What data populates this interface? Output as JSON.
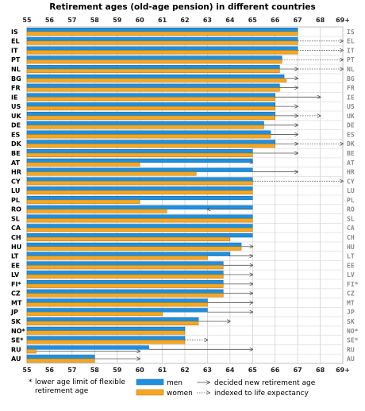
{
  "chart_data": {
    "type": "bar",
    "title": "Retirement ages (old-age pension) in different countries",
    "x_ticks": [
      "55",
      "56",
      "57",
      "58",
      "59",
      "60",
      "61",
      "62",
      "63",
      "64",
      "65",
      "66",
      "67",
      "68",
      "69+"
    ],
    "xlim": [
      55,
      69
    ],
    "grid": true,
    "colors": {
      "men": "#1e90e0",
      "women": "#f5a623",
      "arrow": "#555555"
    },
    "series_names": {
      "men": "men",
      "women": "women"
    },
    "countries": [
      {
        "code": "IS",
        "men": 67,
        "women": 67
      },
      {
        "code": "EL",
        "men": 67,
        "women": 67,
        "arrow": 69,
        "arrow_style": "dotted"
      },
      {
        "code": "IT",
        "men": 67,
        "women": 67,
        "arrow": 69,
        "arrow_style": "dotted"
      },
      {
        "code": "PT",
        "men": 66.3,
        "women": 66.3,
        "arrow": 69,
        "arrow_style": "dotted"
      },
      {
        "code": "NL",
        "men": 66.2,
        "women": 66.2,
        "arrow": 67,
        "arrow_style": "solid",
        "arrow2": 69,
        "arrow2_style": "dotted"
      },
      {
        "code": "BG",
        "men": 66.4,
        "women": 66.5,
        "arrow": 67,
        "arrow_style": "solid"
      },
      {
        "code": "FR",
        "men": 66.2,
        "women": 66.2,
        "arrow": 67,
        "arrow_style": "solid"
      },
      {
        "code": "IE",
        "men": 66,
        "women": 66,
        "arrow": 68,
        "arrow_style": "solid"
      },
      {
        "code": "US",
        "men": 66,
        "women": 66,
        "arrow": 67,
        "arrow_style": "solid"
      },
      {
        "code": "UK",
        "men": 66,
        "women": 66,
        "arrow": 67,
        "arrow_style": "solid",
        "arrow2": 68,
        "arrow2_style": "dotted"
      },
      {
        "code": "DE",
        "men": 65.5,
        "women": 65.5,
        "arrow": 67,
        "arrow_style": "solid"
      },
      {
        "code": "ES",
        "men": 65.8,
        "women": 65.8,
        "arrow": 67,
        "arrow_style": "solid"
      },
      {
        "code": "DK",
        "men": 66,
        "women": 66,
        "arrow": 67,
        "arrow_style": "solid",
        "arrow2": 69,
        "arrow2_style": "dotted"
      },
      {
        "code": "BE",
        "men": 65,
        "women": 65,
        "arrow": 67,
        "arrow_style": "solid"
      },
      {
        "code": "AT",
        "men": 65,
        "women": 60,
        "arrow": 65,
        "arrow_style": "solid"
      },
      {
        "code": "HR",
        "men": 65,
        "women": 62.5,
        "arrow": 67,
        "arrow_style": "solid"
      },
      {
        "code": "CY",
        "men": 65,
        "women": 65,
        "arrow": 69,
        "arrow_style": "dotted"
      },
      {
        "code": "LU",
        "men": 65,
        "women": 65
      },
      {
        "code": "PL",
        "men": 65,
        "women": 60
      },
      {
        "code": "RO",
        "men": 65,
        "women": 61.2,
        "arrow": 63,
        "arrow_style": "solid"
      },
      {
        "code": "SL",
        "men": 65,
        "women": 65
      },
      {
        "code": "CA",
        "men": 65,
        "women": 65
      },
      {
        "code": "CH",
        "men": 65,
        "women": 64
      },
      {
        "code": "HU",
        "men": 64.5,
        "women": 64.5,
        "arrow": 65,
        "arrow_style": "solid"
      },
      {
        "code": "LT",
        "men": 64,
        "women": 63,
        "arrow": 65,
        "arrow_style": "solid"
      },
      {
        "code": "EE",
        "men": 63.7,
        "women": 63.7,
        "arrow": 65,
        "arrow_style": "solid"
      },
      {
        "code": "LV",
        "men": 63.7,
        "women": 63.7,
        "arrow": 65,
        "arrow_style": "solid"
      },
      {
        "code": "FI*",
        "men": 63.7,
        "women": 63.7,
        "arrow": 65,
        "arrow_style": "solid"
      },
      {
        "code": "CZ",
        "men": 63.7,
        "women": 63.7,
        "arrow": 65,
        "arrow_style": "solid"
      },
      {
        "code": "MT",
        "men": 63,
        "women": 63,
        "arrow": 65,
        "arrow_style": "solid"
      },
      {
        "code": "JP",
        "men": 63,
        "women": 61,
        "arrow": 65,
        "arrow_style": "solid"
      },
      {
        "code": "SK",
        "men": 62.6,
        "women": 62.6,
        "arrow": 64,
        "arrow_style": "solid"
      },
      {
        "code": "NO*",
        "men": 62,
        "women": 62
      },
      {
        "code": "SE*",
        "men": 62,
        "women": 62,
        "arrow": 63,
        "arrow_style": "dotted"
      },
      {
        "code": "RU",
        "men": 60.4,
        "women": 55.4,
        "arrow": 65,
        "arrow_style": "solid",
        "arrow_w": 60,
        "arrow_w_style": "solid"
      },
      {
        "code": "AU",
        "men": 58,
        "women": 58,
        "arrow": 60,
        "arrow_style": "solid"
      }
    ],
    "legend": {
      "men": "men",
      "women": "women",
      "decided": "decided new retirement age",
      "indexed": "indexed to life expectancy",
      "footnote_mark": "*",
      "footnote": "lower age limit of flexible retirement age"
    }
  }
}
